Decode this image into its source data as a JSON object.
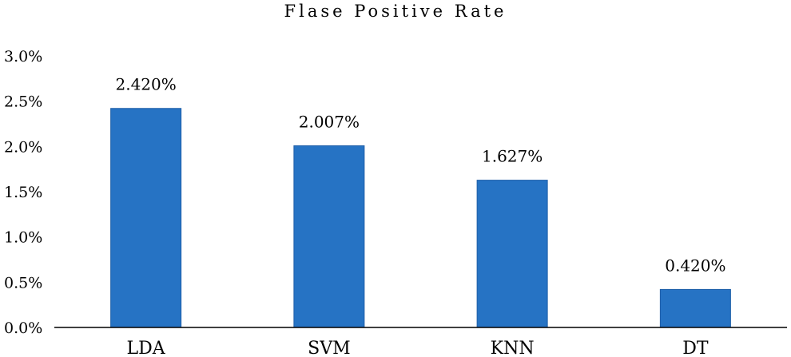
{
  "chart_data": {
    "type": "bar",
    "title": "Flase Positive Rate",
    "xlabel": "",
    "ylabel": "",
    "categories": [
      "LDA",
      "SVM",
      "KNN",
      "DT"
    ],
    "values": [
      2.42,
      2.007,
      1.627,
      0.42
    ],
    "data_labels": [
      "2.420%",
      "2.007%",
      "1.627%",
      "0.420%"
    ],
    "ylim": [
      0,
      3.0
    ],
    "yticks": [
      0,
      0.5,
      1.0,
      1.5,
      2.0,
      2.5,
      3.0
    ],
    "ytick_labels": [
      "0.0%",
      "0.5%",
      "1.0%",
      "1.5%",
      "2.0%",
      "2.5%",
      "3.0%"
    ],
    "grid": false,
    "legend": "none",
    "bar_color": "#2673c4"
  }
}
